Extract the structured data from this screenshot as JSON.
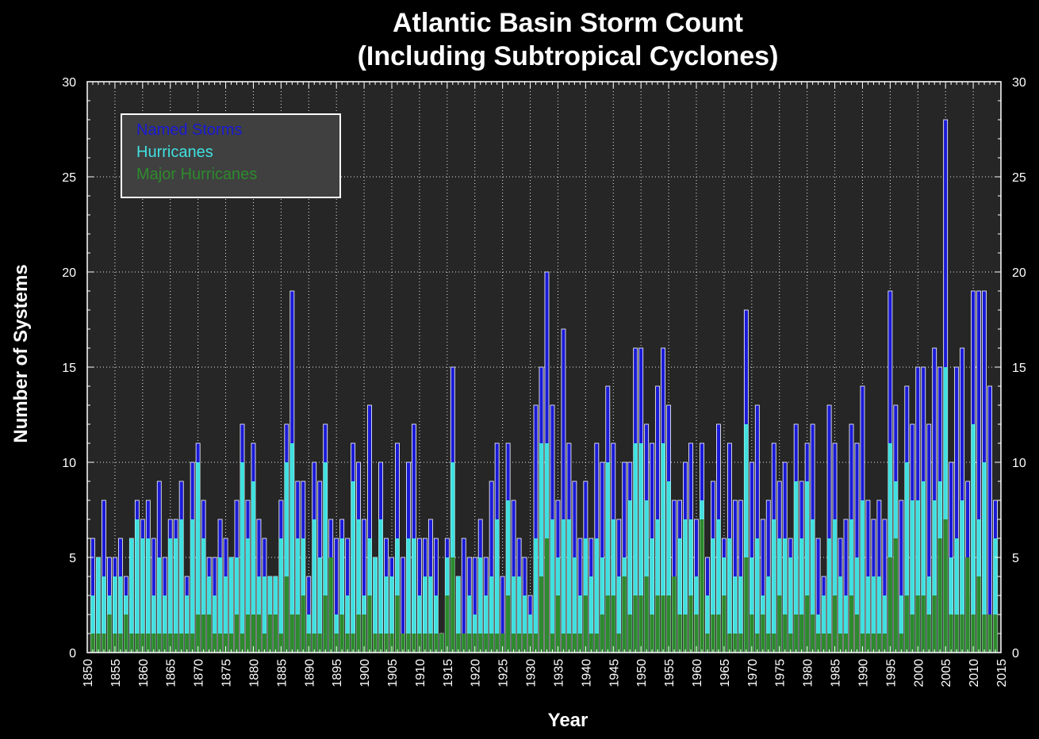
{
  "chart_data": {
    "type": "bar",
    "title_line1": "Atlantic Basin Storm Count",
    "title_line2": "(Including Subtropical Cyclones)",
    "xlabel": "Year",
    "ylabel": "Number of Systems",
    "xlim": [
      1850,
      2015
    ],
    "ylim": [
      0,
      30
    ],
    "x_ticks": [
      1850,
      1855,
      1860,
      1865,
      1870,
      1875,
      1880,
      1885,
      1890,
      1895,
      1900,
      1905,
      1910,
      1915,
      1920,
      1925,
      1930,
      1935,
      1940,
      1945,
      1950,
      1955,
      1960,
      1965,
      1970,
      1975,
      1980,
      1985,
      1990,
      1995,
      2000,
      2005,
      2010,
      2015
    ],
    "y_ticks": [
      0,
      5,
      10,
      15,
      20,
      25,
      30
    ],
    "grid": true,
    "legend_placement": "top-left",
    "background_color": "#000000",
    "plot_background_color": "#262626",
    "start_year": 1851,
    "series": [
      {
        "name": "Named Storms",
        "color": "#1a1ad6",
        "values": [
          6,
          5,
          8,
          5,
          5,
          6,
          4,
          6,
          8,
          7,
          8,
          6,
          9,
          5,
          7,
          7,
          9,
          4,
          10,
          11,
          8,
          5,
          5,
          7,
          6,
          5,
          8,
          12,
          8,
          11,
          7,
          6,
          4,
          4,
          8,
          12,
          19,
          9,
          9,
          4,
          10,
          9,
          12,
          7,
          6,
          7,
          6,
          11,
          10,
          7,
          13,
          5,
          10,
          6,
          5,
          11,
          5,
          10,
          12,
          6,
          6,
          7,
          6,
          1,
          6,
          15,
          4,
          6,
          5,
          5,
          7,
          5,
          9,
          11,
          4,
          11,
          8,
          6,
          5,
          3,
          13,
          15,
          20,
          13,
          8,
          17,
          11,
          9,
          6,
          9,
          6,
          11,
          10,
          14,
          11,
          7,
          10,
          10,
          16,
          16,
          12,
          11,
          14,
          16,
          13,
          8,
          8,
          10,
          11,
          7,
          11,
          5,
          9,
          12,
          6,
          11,
          8,
          8,
          18,
          10,
          13,
          7,
          8,
          11,
          9,
          10,
          6,
          12,
          9,
          11,
          12,
          6,
          4,
          13,
          11,
          6,
          7,
          12,
          11,
          14,
          8,
          7,
          8,
          7,
          19,
          13,
          8,
          14,
          12,
          15,
          15,
          12,
          16,
          15,
          28,
          10,
          15,
          16,
          9,
          19,
          19,
          19,
          14,
          8
        ],
        "note_values_by_year_from_start_year": true
      },
      {
        "name": "Hurricanes",
        "color": "#40e0e0",
        "values": [
          3,
          5,
          4,
          3,
          4,
          4,
          3,
          6,
          7,
          6,
          6,
          3,
          5,
          3,
          6,
          6,
          7,
          3,
          7,
          10,
          6,
          4,
          3,
          5,
          4,
          5,
          5,
          10,
          6,
          9,
          4,
          4,
          4,
          4,
          6,
          10,
          11,
          6,
          6,
          2,
          7,
          5,
          10,
          5,
          2,
          6,
          3,
          9,
          7,
          3,
          6,
          5,
          7,
          4,
          4,
          6,
          1,
          6,
          6,
          3,
          4,
          4,
          3,
          1,
          5,
          10,
          4,
          1,
          3,
          2,
          5,
          3,
          4,
          7,
          1,
          8,
          4,
          4,
          3,
          2,
          6,
          11,
          11,
          7,
          5,
          7,
          7,
          5,
          3,
          6,
          4,
          6,
          5,
          10,
          7,
          4,
          5,
          8,
          11,
          11,
          8,
          6,
          7,
          11,
          9,
          4,
          6,
          7,
          7,
          4,
          8,
          3,
          6,
          7,
          5,
          6,
          4,
          4,
          12,
          5,
          6,
          3,
          4,
          7,
          6,
          6,
          5,
          9,
          6,
          9,
          7,
          2,
          3,
          6,
          7,
          4,
          3,
          7,
          5,
          8,
          4,
          4,
          4,
          3,
          11,
          9,
          3,
          10,
          8,
          8,
          9,
          4,
          8,
          9,
          15,
          5,
          6,
          8,
          3,
          12,
          7,
          10,
          2,
          6
        ],
        "note_values_by_year_from_start_year": true
      },
      {
        "name": "Major Hurricanes",
        "color": "#2d8a2d",
        "values": [
          1,
          1,
          1,
          2,
          1,
          1,
          2,
          1,
          1,
          1,
          1,
          1,
          1,
          1,
          1,
          1,
          1,
          1,
          1,
          2,
          2,
          2,
          1,
          1,
          1,
          1,
          2,
          1,
          2,
          2,
          2,
          1,
          2,
          2,
          1,
          4,
          2,
          2,
          3,
          1,
          1,
          1,
          3,
          5,
          1,
          2,
          1,
          1,
          2,
          2,
          3,
          1,
          1,
          1,
          1,
          3,
          1,
          1,
          1,
          1,
          1,
          1,
          1,
          1,
          3,
          5,
          1,
          1,
          1,
          1,
          1,
          1,
          1,
          1,
          1,
          3,
          1,
          1,
          1,
          1,
          1,
          4,
          6,
          1,
          3,
          1,
          1,
          1,
          1,
          3,
          1,
          1,
          2,
          3,
          3,
          1,
          4,
          2,
          3,
          3,
          4,
          2,
          3,
          3,
          3,
          4,
          2,
          2,
          3,
          2,
          7,
          1,
          2,
          2,
          3,
          1,
          1,
          1,
          5,
          2,
          1,
          2,
          1,
          1,
          3,
          2,
          1,
          2,
          2,
          3,
          2,
          1,
          1,
          1,
          3,
          1,
          1,
          3,
          2,
          1,
          1,
          1,
          1,
          1,
          5,
          6,
          1,
          3,
          2,
          3,
          3,
          2,
          3,
          6,
          7,
          2,
          2,
          2,
          5,
          2,
          4,
          2,
          2,
          2
        ],
        "note_values_by_year_from_start_year": true
      }
    ]
  }
}
